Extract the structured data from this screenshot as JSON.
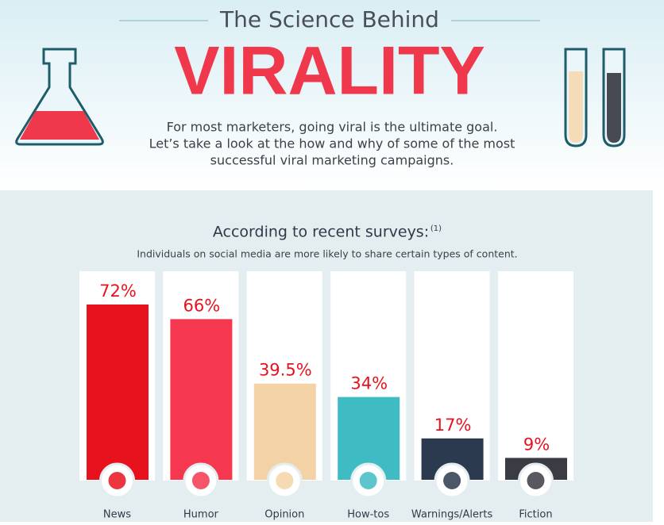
{
  "header": {
    "kicker": "The Science Behind",
    "title": "VIRALITY",
    "intro": [
      "For most marketers, going viral is the ultimate goal.",
      "Let’s take a look at the how and why of some of the most",
      "successful viral marketing campaigns."
    ]
  },
  "chart_data": {
    "type": "bar",
    "title": "According to recent surveys:",
    "title_note": "(1)",
    "subtitle": "Individuals on social media are more likely to share certain types of content.",
    "categories": [
      "News",
      "Humor",
      "Opinion",
      "How-tos",
      "Warnings/Alerts",
      "Fiction"
    ],
    "values": [
      72,
      66,
      39.5,
      34,
      17,
      9
    ],
    "value_labels": [
      "72%",
      "66%",
      "39.5%",
      "34%",
      "17%",
      "9%"
    ],
    "colors": [
      "#e8121f",
      "#f5374f",
      "#f3d3a6",
      "#3fbcc3",
      "#2b3a4e",
      "#3b3b44"
    ],
    "ylim": [
      0,
      100
    ]
  }
}
